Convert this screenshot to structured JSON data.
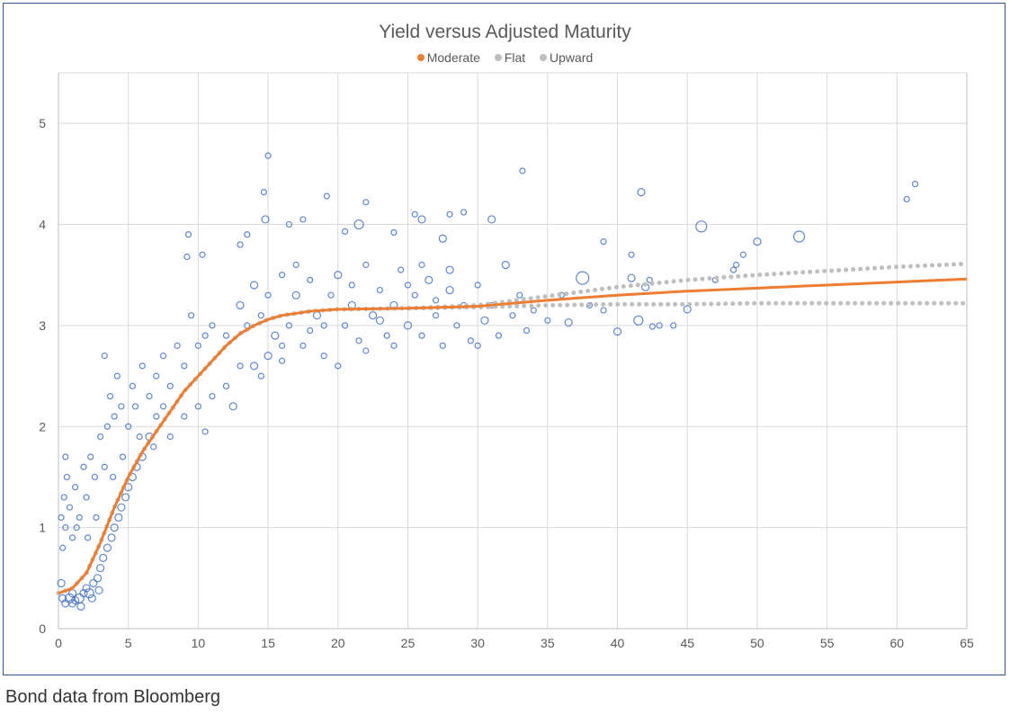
{
  "caption": "Bond data from Bloomberg",
  "chart_data": {
    "type": "scatter",
    "title": "Yield versus Adjusted Maturity",
    "xlabel": "",
    "ylabel": "",
    "xlim": [
      0,
      65
    ],
    "ylim": [
      0,
      5.5
    ],
    "xticks": [
      0,
      5,
      10,
      15,
      20,
      25,
      30,
      35,
      40,
      45,
      50,
      55,
      60,
      65
    ],
    "yticks": [
      0,
      1,
      2,
      3,
      4,
      5
    ],
    "grid": true,
    "legend_position": "top",
    "legend": [
      {
        "name": "Moderate",
        "color": "#ed7d31"
      },
      {
        "name": "Flat",
        "color": "#bfbfbf"
      },
      {
        "name": "Upward",
        "color": "#bfbfbf"
      }
    ],
    "scatter_color": "#4472c4",
    "scatter_points": [
      [
        0.3,
        0.3,
        4
      ],
      [
        0.5,
        0.25,
        4
      ],
      [
        0.8,
        0.3,
        5
      ],
      [
        1,
        0.35,
        4
      ],
      [
        1.2,
        0.28,
        4
      ],
      [
        1.5,
        0.3,
        5
      ],
      [
        1.8,
        0.35,
        4
      ],
      [
        2,
        0.4,
        4
      ],
      [
        2.2,
        0.35,
        5
      ],
      [
        2.5,
        0.45,
        4
      ],
      [
        2.8,
        0.5,
        4
      ],
      [
        3,
        0.6,
        4
      ],
      [
        3.2,
        0.7,
        4
      ],
      [
        3.5,
        0.8,
        4
      ],
      [
        3.8,
        0.9,
        4
      ],
      [
        4,
        1.0,
        4
      ],
      [
        4.3,
        1.1,
        4
      ],
      [
        4.5,
        1.2,
        4
      ],
      [
        4.8,
        1.3,
        4
      ],
      [
        5,
        1.4,
        4
      ],
      [
        5.3,
        1.5,
        4
      ],
      [
        5.6,
        1.6,
        4
      ],
      [
        6,
        1.7,
        4
      ],
      [
        6.5,
        1.9,
        4
      ],
      [
        1,
        0.25,
        4
      ],
      [
        1.6,
        0.22,
        4
      ],
      [
        2.4,
        0.3,
        4
      ],
      [
        2.9,
        0.38,
        4
      ],
      [
        0.2,
        0.45,
        4
      ],
      [
        0.3,
        0.8,
        3
      ],
      [
        0.5,
        1.0,
        3
      ],
      [
        0.4,
        1.3,
        3
      ],
      [
        0.6,
        1.5,
        3
      ],
      [
        0.8,
        1.2,
        3
      ],
      [
        1,
        0.9,
        3
      ],
      [
        1.2,
        1.4,
        3
      ],
      [
        1.5,
        1.1,
        3
      ],
      [
        1.8,
        1.6,
        3
      ],
      [
        2,
        1.3,
        3
      ],
      [
        2.3,
        1.7,
        3
      ],
      [
        2.6,
        1.5,
        3
      ],
      [
        3,
        1.9,
        3
      ],
      [
        3.3,
        1.6,
        3
      ],
      [
        3.5,
        2.0,
        3
      ],
      [
        3.7,
        2.3,
        3
      ],
      [
        4,
        2.1,
        3
      ],
      [
        4.2,
        2.5,
        3
      ],
      [
        4.5,
        2.2,
        3
      ],
      [
        5,
        2.0,
        3
      ],
      [
        5.3,
        2.4,
        3
      ],
      [
        5.5,
        2.2,
        3
      ],
      [
        6,
        2.6,
        3
      ],
      [
        6.5,
        2.3,
        3
      ],
      [
        7,
        2.5,
        3
      ],
      [
        7.5,
        2.7,
        3
      ],
      [
        8,
        2.4,
        3
      ],
      [
        8.5,
        2.8,
        3
      ],
      [
        9,
        2.6,
        3
      ],
      [
        9.5,
        3.1,
        3
      ],
      [
        10,
        2.8,
        3
      ],
      [
        10.5,
        2.9,
        3
      ],
      [
        11,
        3.0,
        3
      ],
      [
        3.3,
        2.7,
        3
      ],
      [
        0.5,
        1.7,
        3
      ],
      [
        0.2,
        1.1,
        3
      ],
      [
        1.3,
        1.0,
        3
      ],
      [
        2.1,
        0.9,
        3
      ],
      [
        2.7,
        1.1,
        3
      ],
      [
        3.9,
        1.5,
        3
      ],
      [
        4.6,
        1.7,
        3
      ],
      [
        5.8,
        1.9,
        3
      ],
      [
        8,
        1.9,
        3
      ],
      [
        9,
        2.1,
        3
      ],
      [
        10,
        2.2,
        3
      ],
      [
        10.5,
        1.95,
        3
      ],
      [
        11,
        2.3,
        3
      ],
      [
        12,
        2.4,
        3
      ],
      [
        12.5,
        2.2,
        4
      ],
      [
        13,
        2.6,
        3
      ],
      [
        14,
        2.6,
        4
      ],
      [
        14.5,
        2.5,
        3
      ],
      [
        15,
        2.7,
        4
      ],
      [
        16,
        2.65,
        3
      ],
      [
        7,
        2.1,
        3
      ],
      [
        6.8,
        1.8,
        3
      ],
      [
        7.5,
        2.2,
        3
      ],
      [
        12,
        2.9,
        3
      ],
      [
        13,
        3.2,
        4
      ],
      [
        13.5,
        3.0,
        3
      ],
      [
        14,
        3.4,
        4
      ],
      [
        14.5,
        3.1,
        3
      ],
      [
        15,
        3.3,
        3
      ],
      [
        15.5,
        2.9,
        4
      ],
      [
        16,
        3.5,
        3
      ],
      [
        16.5,
        3.0,
        3
      ],
      [
        17,
        3.3,
        4
      ],
      [
        17.5,
        2.8,
        3
      ],
      [
        18,
        3.45,
        3
      ],
      [
        18.5,
        3.1,
        4
      ],
      [
        19,
        2.7,
        3
      ],
      [
        19.5,
        3.3,
        3
      ],
      [
        20,
        3.5,
        4
      ],
      [
        20.5,
        3.0,
        3
      ],
      [
        21,
        3.2,
        4
      ],
      [
        21.5,
        2.85,
        3
      ],
      [
        22,
        3.6,
        3
      ],
      [
        22.5,
        3.1,
        4
      ],
      [
        23,
        3.35,
        3
      ],
      [
        23.5,
        2.9,
        3
      ],
      [
        24,
        3.2,
        4
      ],
      [
        24.5,
        3.55,
        3
      ],
      [
        25,
        3.0,
        4
      ],
      [
        25.5,
        3.3,
        3
      ],
      [
        26,
        2.9,
        3
      ],
      [
        26.5,
        3.45,
        4
      ],
      [
        27,
        3.1,
        3
      ],
      [
        27.5,
        2.8,
        3
      ],
      [
        28,
        3.35,
        4
      ],
      [
        28.5,
        3.0,
        3
      ],
      [
        29,
        3.2,
        3
      ],
      [
        29.5,
        2.85,
        3
      ],
      [
        30,
        3.4,
        3
      ],
      [
        30.5,
        3.05,
        4
      ],
      [
        31,
        3.2,
        3
      ],
      [
        31.5,
        2.9,
        3
      ],
      [
        32,
        3.6,
        4
      ],
      [
        32.5,
        3.1,
        3
      ],
      [
        33,
        3.3,
        3
      ],
      [
        33.5,
        2.95,
        3
      ],
      [
        19,
        3.0,
        3
      ],
      [
        21,
        3.4,
        3
      ],
      [
        23,
        3.05,
        4
      ],
      [
        25,
        3.4,
        3
      ],
      [
        27,
        3.25,
        3
      ],
      [
        18,
        2.95,
        3
      ],
      [
        20,
        2.6,
        3
      ],
      [
        24,
        2.8,
        3
      ],
      [
        26,
        3.6,
        3
      ],
      [
        28,
        3.55,
        4
      ],
      [
        30,
        2.8,
        3
      ],
      [
        22,
        2.75,
        3
      ],
      [
        17,
        3.6,
        3
      ],
      [
        16,
        2.8,
        3
      ],
      [
        15,
        4.68,
        3
      ],
      [
        14.7,
        4.32,
        3
      ],
      [
        14.8,
        4.05,
        4
      ],
      [
        9.3,
        3.9,
        3
      ],
      [
        9.2,
        3.68,
        3
      ],
      [
        10.3,
        3.7,
        3
      ],
      [
        13,
        3.8,
        3
      ],
      [
        13.5,
        3.9,
        3
      ],
      [
        16.5,
        4.0,
        3
      ],
      [
        17.5,
        4.05,
        3
      ],
      [
        19.2,
        4.28,
        3
      ],
      [
        20.5,
        3.93,
        3
      ],
      [
        21.5,
        4.0,
        5
      ],
      [
        22,
        4.22,
        3
      ],
      [
        24,
        3.92,
        3
      ],
      [
        25.5,
        4.1,
        3
      ],
      [
        26,
        4.05,
        4
      ],
      [
        27.5,
        3.86,
        4
      ],
      [
        28,
        4.1,
        3
      ],
      [
        29,
        4.12,
        3
      ],
      [
        31,
        4.05,
        4
      ],
      [
        33.2,
        4.53,
        3
      ],
      [
        39,
        3.83,
        3
      ],
      [
        41,
        3.7,
        3
      ],
      [
        41.7,
        4.32,
        4
      ],
      [
        46,
        3.98,
        6
      ],
      [
        48.5,
        3.6,
        3
      ],
      [
        49,
        3.7,
        3
      ],
      [
        50,
        3.83,
        4
      ],
      [
        53,
        3.88,
        6
      ],
      [
        60.7,
        4.25,
        3
      ],
      [
        61.3,
        4.4,
        3
      ],
      [
        37.5,
        3.47,
        7
      ],
      [
        36,
        3.3,
        3
      ],
      [
        39,
        3.15,
        3
      ],
      [
        40,
        2.94,
        4
      ],
      [
        41,
        3.47,
        4
      ],
      [
        41.5,
        3.05,
        5
      ],
      [
        42,
        3.38,
        4
      ],
      [
        42.5,
        2.99,
        3
      ],
      [
        43,
        3.0,
        3
      ],
      [
        44,
        3.0,
        3
      ],
      [
        45,
        3.16,
        4
      ],
      [
        47,
        3.45,
        3
      ],
      [
        48.3,
        3.55,
        3
      ],
      [
        38,
        3.2,
        3
      ],
      [
        35,
        3.05,
        3
      ],
      [
        34,
        3.15,
        3
      ],
      [
        36.5,
        3.03,
        4
      ],
      [
        42.3,
        3.45,
        3
      ]
    ],
    "series": [
      {
        "name": "Moderate",
        "x": [
          0,
          1,
          2,
          3,
          4,
          5,
          6,
          7,
          8,
          9,
          10,
          11,
          12,
          13,
          14,
          15,
          16,
          17,
          18,
          20,
          25,
          30,
          35,
          40,
          45,
          50,
          55,
          60,
          65
        ],
        "y": [
          0.35,
          0.4,
          0.55,
          0.85,
          1.2,
          1.5,
          1.75,
          1.95,
          2.15,
          2.35,
          2.5,
          2.65,
          2.8,
          2.92,
          3.0,
          3.06,
          3.1,
          3.12,
          3.14,
          3.16,
          3.17,
          3.19,
          3.25,
          3.3,
          3.34,
          3.37,
          3.4,
          3.43,
          3.46
        ]
      },
      {
        "name": "Flat",
        "x": [
          0,
          1,
          2,
          3,
          4,
          5,
          6,
          7,
          8,
          9,
          10,
          11,
          12,
          13,
          14,
          15,
          16,
          17,
          18,
          20,
          25,
          30,
          35,
          40,
          45,
          50,
          55,
          60,
          65
        ],
        "y": [
          0.35,
          0.4,
          0.55,
          0.85,
          1.2,
          1.5,
          1.75,
          1.95,
          2.15,
          2.35,
          2.5,
          2.65,
          2.8,
          2.92,
          3.0,
          3.06,
          3.1,
          3.12,
          3.14,
          3.16,
          3.17,
          3.18,
          3.2,
          3.21,
          3.21,
          3.22,
          3.22,
          3.22,
          3.22
        ]
      },
      {
        "name": "Upward",
        "x": [
          0,
          1,
          2,
          3,
          4,
          5,
          6,
          7,
          8,
          9,
          10,
          11,
          12,
          13,
          14,
          15,
          16,
          17,
          18,
          20,
          25,
          30,
          35,
          40,
          45,
          50,
          55,
          60,
          65
        ],
        "y": [
          0.35,
          0.4,
          0.55,
          0.85,
          1.2,
          1.5,
          1.75,
          1.95,
          2.15,
          2.35,
          2.5,
          2.65,
          2.8,
          2.92,
          3.0,
          3.06,
          3.1,
          3.12,
          3.14,
          3.16,
          3.17,
          3.2,
          3.29,
          3.38,
          3.45,
          3.5,
          3.54,
          3.58,
          3.61
        ]
      }
    ]
  }
}
